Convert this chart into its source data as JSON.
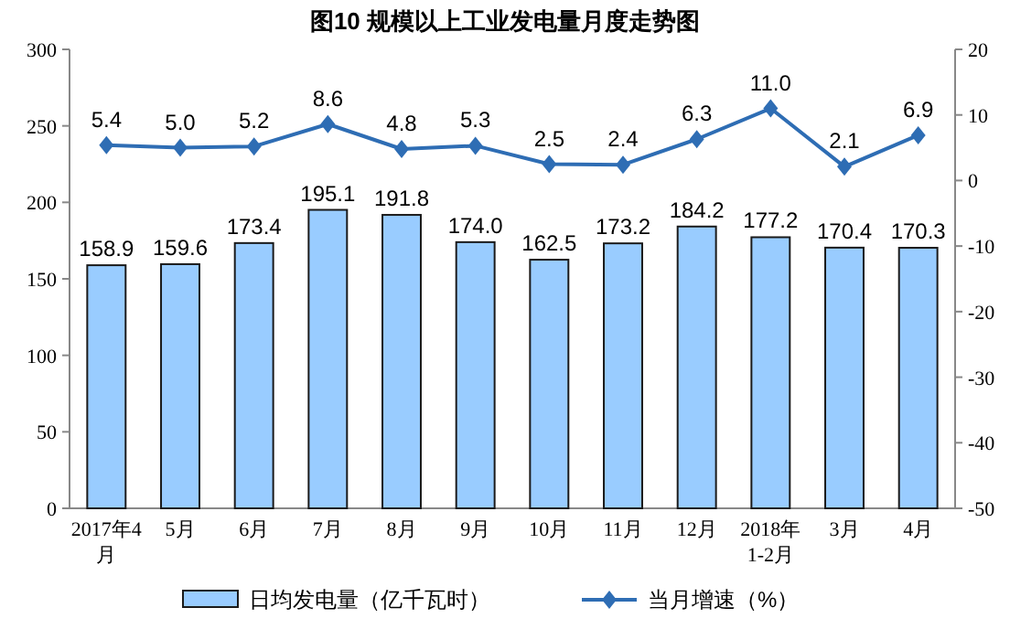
{
  "chart_data": {
    "type": "bar",
    "title": "图10  规模以上工业发电量月度走势图",
    "categories": [
      "2017年4月",
      "5月",
      "6月",
      "7月",
      "8月",
      "9月",
      "10月",
      "11月",
      "12月",
      "2018年1-2月",
      "3月",
      "4月"
    ],
    "series": [
      {
        "name": "日均发电量（亿千瓦时）",
        "color": "#99ccff",
        "values": [
          158.9,
          159.6,
          173.4,
          195.1,
          191.8,
          174.0,
          162.5,
          173.2,
          184.2,
          177.2,
          170.4,
          170.3
        ],
        "value_labels": [
          "158.9",
          "159.6",
          "173.4",
          "195.1",
          "191.8",
          "174.0",
          "162.5",
          "173.2",
          "184.2",
          "177.2",
          "170.4",
          "170.3"
        ]
      },
      {
        "name": "当月增速（%）",
        "type": "line",
        "axis": "y2",
        "color": "#2e6db4",
        "marker": "diamond",
        "values": [
          5.4,
          5.0,
          5.2,
          8.6,
          4.8,
          5.3,
          2.5,
          2.4,
          6.3,
          11.0,
          2.1,
          6.9
        ],
        "value_labels": [
          "5.4",
          "5.0",
          "5.2",
          "8.6",
          "4.8",
          "5.3",
          "2.5",
          "2.4",
          "6.3",
          "11.0",
          "2.1",
          "6.9"
        ]
      }
    ],
    "ylim": [
      0,
      300
    ],
    "yticks": [
      0,
      50,
      100,
      150,
      200,
      250,
      300
    ],
    "y2lim": [
      -50,
      20
    ],
    "y2ticks": [
      -50,
      -40,
      -30,
      -20,
      -10,
      0,
      10,
      20
    ],
    "grid": false,
    "legend": "bottom"
  }
}
